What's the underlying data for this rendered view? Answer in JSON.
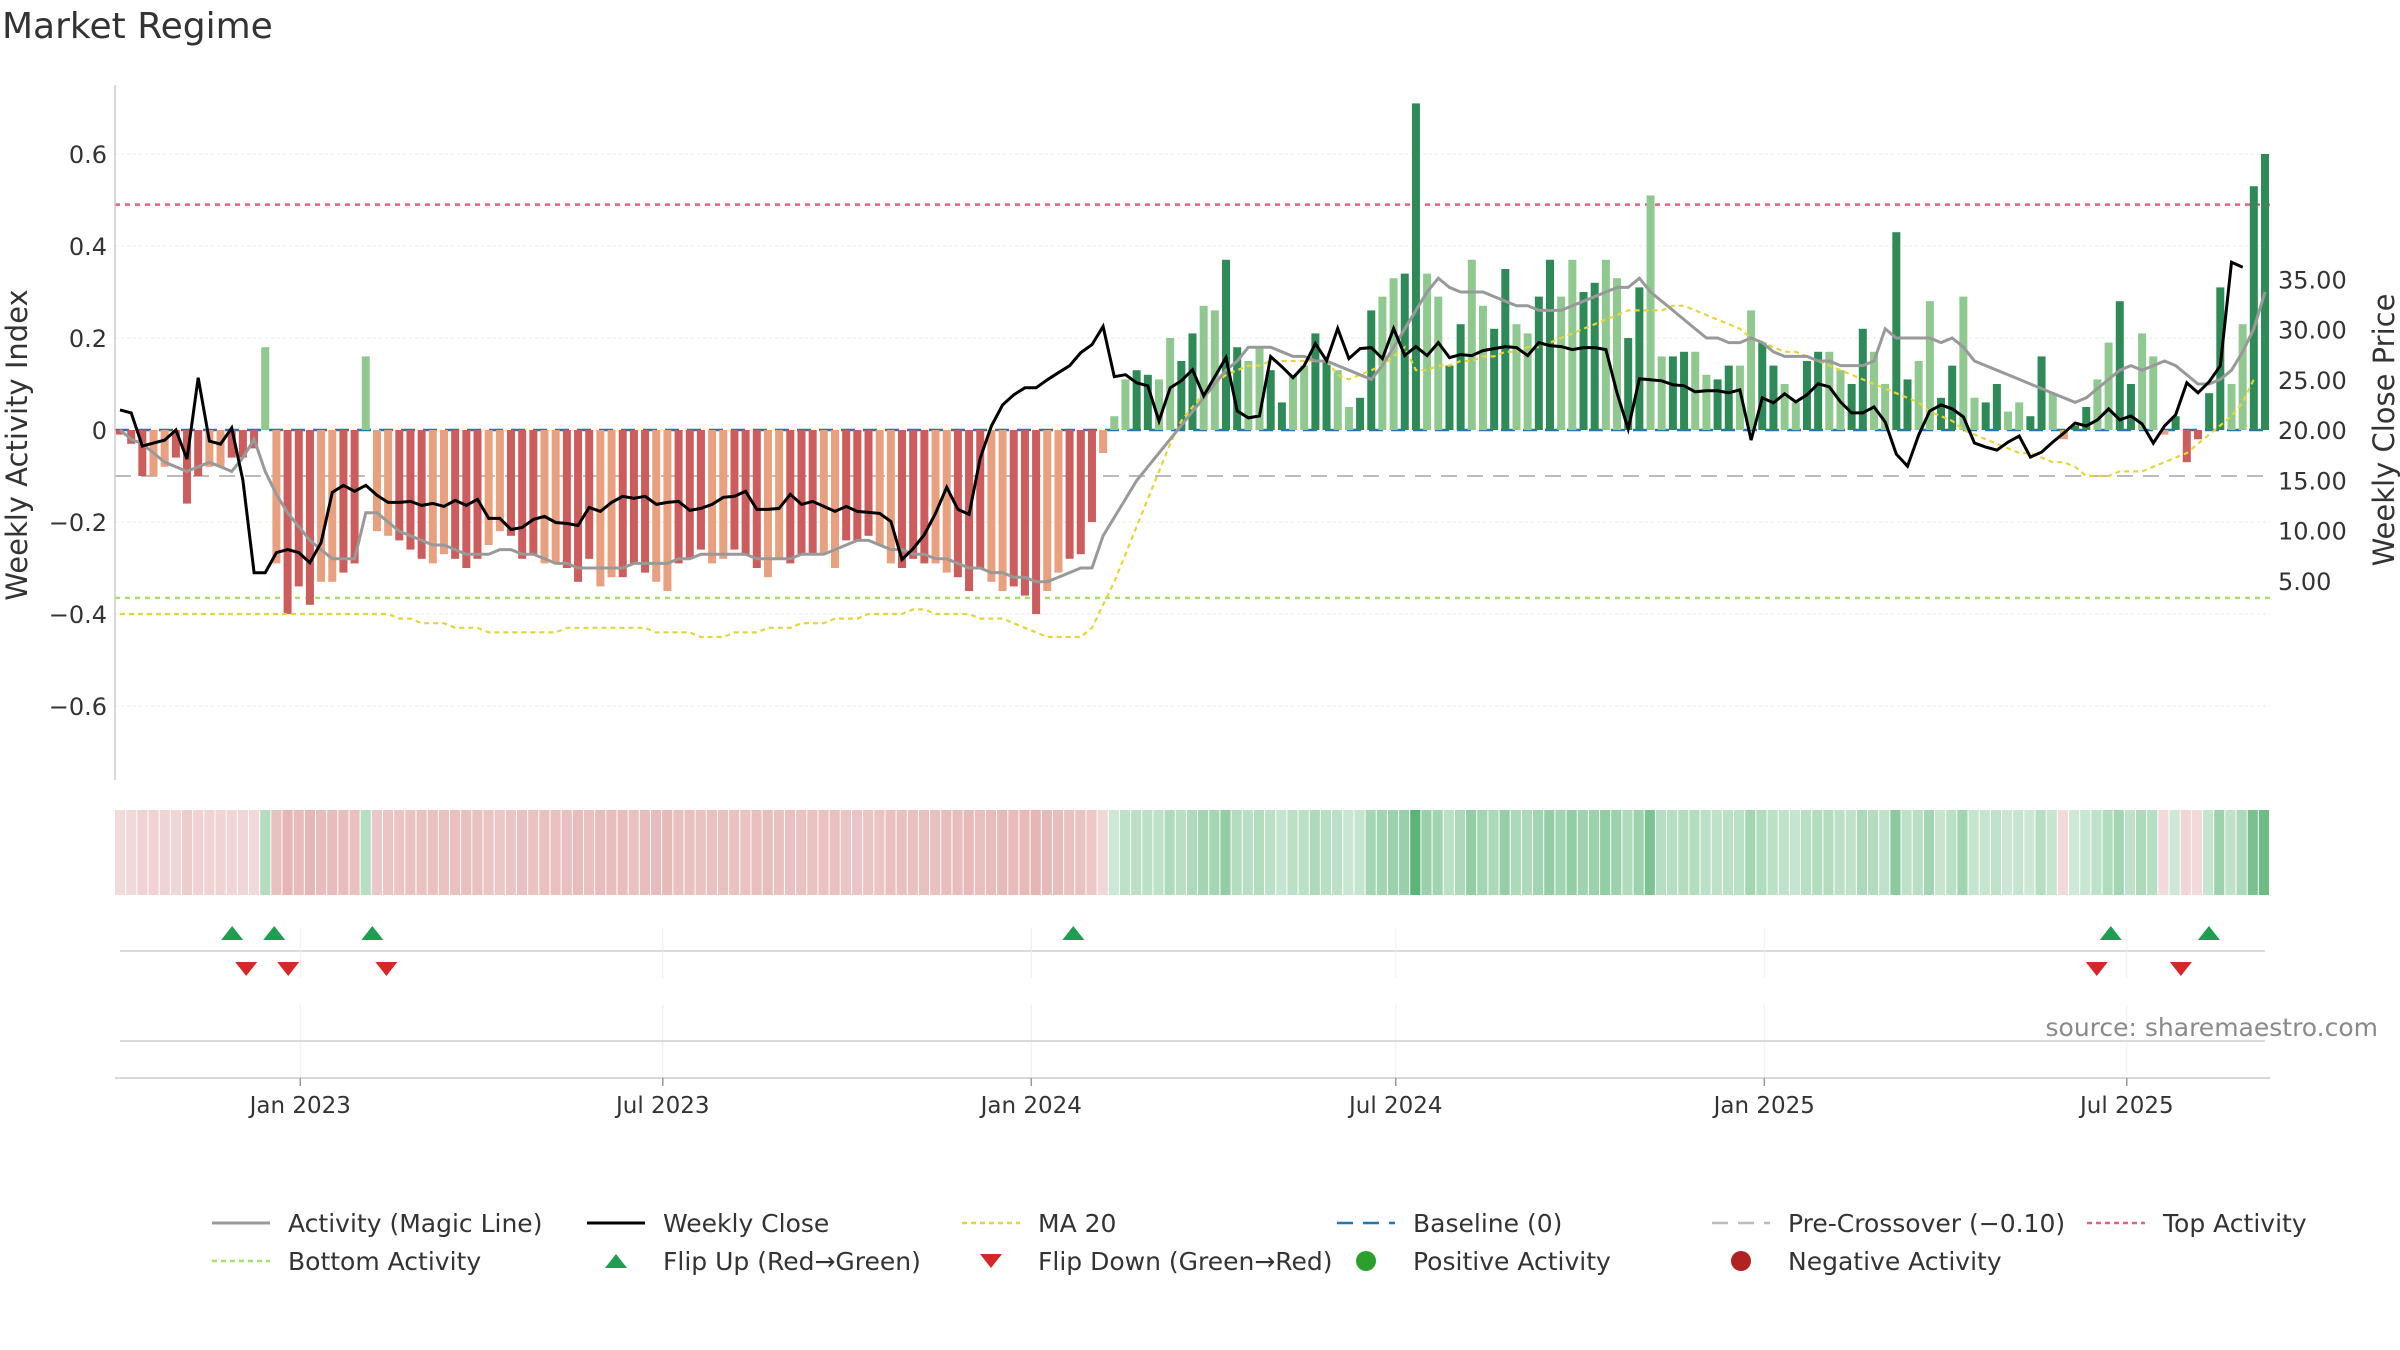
{
  "page": {
    "title": "Market Regime",
    "source": "source: sharemaestro.com"
  },
  "colors": {
    "pos_dark": "#2e8b57",
    "pos_light": "#8fc98f",
    "neg_dark": "#cd5c5c",
    "neg_light": "#e9a07e",
    "close": "#000000",
    "magic": "#999999",
    "ma20": "#e6d53a",
    "baseline": "#1f77b4",
    "precross": "#bbbbbb",
    "top": "#e8607a",
    "bottom": "#a6e06b",
    "flip_up": "#1e9e50",
    "flip_down": "#d62728",
    "pos_dot": "#2ca02c",
    "neg_dot": "#b22222"
  },
  "legend": [
    {
      "label": "Activity (Magic Line)",
      "key": "magic",
      "kind": "line"
    },
    {
      "label": "Weekly Close",
      "key": "close",
      "kind": "line"
    },
    {
      "label": "MA 20",
      "key": "ma20",
      "kind": "dotted"
    },
    {
      "label": "Baseline (0)",
      "key": "baseline",
      "kind": "dashed"
    },
    {
      "label": "Pre-Crossover (−0.10)",
      "key": "precross",
      "kind": "dashed"
    },
    {
      "label": "Top Activity",
      "key": "top",
      "kind": "dotted"
    },
    {
      "label": "Bottom Activity",
      "key": "bottom",
      "kind": "dotted"
    },
    {
      "label": "Flip Up (Red→Green)",
      "key": "flip_up",
      "kind": "tri-up"
    },
    {
      "label": "Flip Down (Green→Red)",
      "key": "flip_down",
      "kind": "tri-down"
    },
    {
      "label": "Positive Activity",
      "key": "pos_dot",
      "kind": "dot"
    },
    {
      "label": "Negative Activity",
      "key": "neg_dot",
      "kind": "dot"
    }
  ],
  "chart_data": {
    "type": "bar",
    "ylabel": "Weekly Activity Index",
    "y2label": "Weekly Close Price",
    "ylim": [
      -0.76,
      0.76
    ],
    "y2lim": [
      2.0,
      39.0
    ],
    "yticks": [
      0.6,
      0.4,
      0.2,
      0,
      -0.2,
      -0.4,
      -0.6
    ],
    "ytick_labels": [
      "0.6",
      "0.4",
      "0.2",
      "0",
      "−0.2",
      "−0.4",
      "−0.6"
    ],
    "y2ticks": [
      35,
      30,
      25,
      20,
      15,
      10,
      5
    ],
    "y2tick_labels": [
      "35.00",
      "30.00",
      "25.00",
      "20.00",
      "15.00",
      "10.00",
      "5.00"
    ],
    "x_start": "2022-10-03",
    "x_end": "2025-09-08",
    "xticks": [
      {
        "date": "2023-01-01",
        "label": "Jan 2023"
      },
      {
        "date": "2023-07-01",
        "label": "Jul 2023"
      },
      {
        "date": "2024-01-01",
        "label": "Jan 2024"
      },
      {
        "date": "2024-07-01",
        "label": "Jul 2024"
      },
      {
        "date": "2025-01-01",
        "label": "Jan 2025"
      },
      {
        "date": "2025-07-01",
        "label": "Jul 2025"
      }
    ],
    "reference_lines": {
      "top": 0.49,
      "bottom": -0.365,
      "baseline": 0,
      "pre_crossover": -0.1
    },
    "grid": true,
    "legend_position": "bottom",
    "activity": [
      -0.01,
      -0.03,
      -0.1,
      -0.1,
      -0.08,
      -0.06,
      -0.16,
      -0.1,
      -0.08,
      -0.08,
      -0.06,
      -0.06,
      -0.04,
      0.18,
      -0.29,
      -0.4,
      -0.34,
      -0.38,
      -0.33,
      -0.33,
      -0.31,
      -0.29,
      0.16,
      -0.22,
      -0.23,
      -0.24,
      -0.26,
      -0.28,
      -0.29,
      -0.27,
      -0.28,
      -0.3,
      -0.28,
      -0.25,
      -0.22,
      -0.23,
      -0.28,
      -0.27,
      -0.29,
      -0.29,
      -0.3,
      -0.33,
      -0.28,
      -0.34,
      -0.32,
      -0.32,
      -0.29,
      -0.31,
      -0.33,
      -0.35,
      -0.29,
      -0.28,
      -0.26,
      -0.29,
      -0.28,
      -0.26,
      -0.27,
      -0.3,
      -0.32,
      -0.28,
      -0.29,
      -0.27,
      -0.27,
      -0.27,
      -0.3,
      -0.24,
      -0.24,
      -0.23,
      -0.25,
      -0.29,
      -0.3,
      -0.28,
      -0.29,
      -0.29,
      -0.31,
      -0.32,
      -0.35,
      -0.3,
      -0.33,
      -0.35,
      -0.34,
      -0.36,
      -0.4,
      -0.35,
      -0.31,
      -0.28,
      -0.27,
      -0.2,
      -0.05,
      0.03,
      0.11,
      0.13,
      0.12,
      0.11,
      0.2,
      0.15,
      0.21,
      0.27,
      0.26,
      0.37,
      0.18,
      0.15,
      0.18,
      0.13,
      0.06,
      0.12,
      0.14,
      0.21,
      0.15,
      0.13,
      0.05,
      0.07,
      0.26,
      0.29,
      0.33,
      0.34,
      0.71,
      0.34,
      0.29,
      0.14,
      0.23,
      0.37,
      0.27,
      0.22,
      0.35,
      0.23,
      0.21,
      0.29,
      0.37,
      0.29,
      0.37,
      0.3,
      0.32,
      0.37,
      0.33,
      0.2,
      0.31,
      0.51,
      0.16,
      0.16,
      0.17,
      0.17,
      0.12,
      0.11,
      0.14,
      0.14,
      0.26,
      0.19,
      0.14,
      0.1,
      0.06,
      0.15,
      0.17,
      0.17,
      0.13,
      0.1,
      0.22,
      0.17,
      0.1,
      0.43,
      0.11,
      0.15,
      0.28,
      0.07,
      0.14,
      0.29,
      0.07,
      0.06,
      0.1,
      0.04,
      0.06,
      0.03,
      0.16,
      0.08,
      -0.02,
      0.01,
      0.05,
      0.11,
      0.19,
      0.28,
      0.1,
      0.21,
      0.16,
      -0.01,
      0.03,
      -0.07,
      -0.02,
      0.08,
      0.31,
      0.1,
      0.23,
      0.53,
      0.6
    ],
    "close": [
      22.0,
      21.7,
      18.4,
      18.7,
      19.0,
      20.0,
      17.1,
      25.2,
      18.9,
      18.6,
      20.2,
      15.0,
      5.8,
      5.8,
      7.8,
      8.1,
      7.8,
      6.8,
      8.8,
      13.8,
      14.5,
      13.9,
      14.5,
      13.5,
      12.8,
      12.8,
      12.9,
      12.5,
      12.7,
      12.4,
      13.0,
      12.5,
      13.1,
      11.2,
      11.2,
      10.1,
      10.3,
      11.1,
      11.4,
      10.8,
      10.7,
      10.5,
      12.3,
      11.9,
      12.8,
      13.4,
      13.2,
      13.4,
      12.6,
      12.8,
      12.9,
      12.0,
      12.2,
      12.6,
      13.3,
      13.4,
      13.9,
      12.1,
      12.1,
      12.2,
      13.6,
      12.6,
      12.9,
      12.4,
      11.9,
      12.4,
      11.9,
      11.8,
      11.7,
      10.9,
      7.1,
      8.2,
      9.6,
      11.7,
      14.3,
      12.1,
      11.6,
      17.2,
      20.4,
      22.5,
      23.5,
      24.2,
      24.2,
      25.0,
      25.7,
      26.4,
      27.7,
      28.5,
      30.3,
      25.3,
      25.5,
      24.7,
      24.4,
      20.9,
      24.2,
      24.9,
      26.0,
      23.4,
      25.3,
      27.2,
      21.9,
      21.2,
      21.4,
      27.3,
      26.3,
      25.2,
      26.4,
      28.6,
      26.9,
      30.1,
      27.1,
      28.1,
      28.2,
      27.1,
      30.1,
      27.4,
      28.3,
      27.4,
      28.7,
      27.2,
      27.5,
      27.4,
      27.9,
      28.1,
      28.3,
      28.2,
      27.4,
      28.7,
      28.4,
      28.3,
      28.0,
      28.2,
      28.2,
      28.0,
      23.7,
      20.1,
      25.1,
      25.0,
      24.9,
      24.5,
      24.4,
      23.8,
      23.9,
      23.9,
      23.7,
      24.0,
      19.0,
      23.2,
      22.7,
      23.6,
      22.8,
      23.5,
      24.6,
      24.3,
      22.8,
      21.7,
      21.7,
      22.3,
      20.8,
      17.6,
      16.4,
      19.5,
      21.9,
      22.5,
      22.1,
      21.3,
      18.7,
      18.3,
      18.0,
      18.8,
      19.4,
      17.3,
      17.8,
      18.8,
      19.7,
      20.7,
      20.4,
      21.0,
      22.1,
      21.0,
      21.4,
      20.6,
      18.7,
      20.4,
      21.5,
      24.7,
      23.7,
      24.8,
      26.4,
      36.7,
      36.2
    ],
    "magic": [
      0.0,
      -0.02,
      -0.03,
      -0.05,
      -0.07,
      -0.08,
      -0.09,
      -0.08,
      -0.07,
      -0.08,
      -0.09,
      -0.06,
      -0.02,
      -0.09,
      -0.14,
      -0.18,
      -0.21,
      -0.24,
      -0.26,
      -0.28,
      -0.28,
      -0.28,
      -0.18,
      -0.18,
      -0.2,
      -0.22,
      -0.23,
      -0.24,
      -0.25,
      -0.25,
      -0.26,
      -0.27,
      -0.27,
      -0.27,
      -0.26,
      -0.26,
      -0.27,
      -0.27,
      -0.28,
      -0.29,
      -0.29,
      -0.3,
      -0.3,
      -0.3,
      -0.3,
      -0.3,
      -0.29,
      -0.29,
      -0.29,
      -0.29,
      -0.28,
      -0.28,
      -0.27,
      -0.27,
      -0.27,
      -0.27,
      -0.27,
      -0.28,
      -0.28,
      -0.28,
      -0.28,
      -0.27,
      -0.27,
      -0.27,
      -0.26,
      -0.25,
      -0.24,
      -0.24,
      -0.25,
      -0.26,
      -0.26,
      -0.27,
      -0.27,
      -0.28,
      -0.28,
      -0.29,
      -0.3,
      -0.3,
      -0.31,
      -0.31,
      -0.32,
      -0.32,
      -0.33,
      -0.33,
      -0.32,
      -0.31,
      -0.3,
      -0.3,
      -0.23,
      -0.19,
      -0.15,
      -0.11,
      -0.08,
      -0.05,
      -0.02,
      0.01,
      0.04,
      0.07,
      0.1,
      0.13,
      0.15,
      0.18,
      0.18,
      0.18,
      0.17,
      0.16,
      0.16,
      0.15,
      0.15,
      0.14,
      0.13,
      0.12,
      0.11,
      0.14,
      0.18,
      0.22,
      0.26,
      0.3,
      0.33,
      0.31,
      0.3,
      0.3,
      0.3,
      0.29,
      0.28,
      0.27,
      0.27,
      0.26,
      0.26,
      0.26,
      0.27,
      0.28,
      0.29,
      0.3,
      0.31,
      0.31,
      0.33,
      0.3,
      0.28,
      0.26,
      0.24,
      0.22,
      0.2,
      0.2,
      0.19,
      0.19,
      0.2,
      0.19,
      0.17,
      0.16,
      0.16,
      0.16,
      0.15,
      0.15,
      0.14,
      0.14,
      0.14,
      0.15,
      0.22,
      0.2,
      0.2,
      0.2,
      0.2,
      0.19,
      0.2,
      0.18,
      0.15,
      0.14,
      0.13,
      0.12,
      0.11,
      0.1,
      0.09,
      0.08,
      0.07,
      0.06,
      0.07,
      0.09,
      0.11,
      0.13,
      0.14,
      0.13,
      0.14,
      0.15,
      0.14,
      0.12,
      0.1,
      0.1,
      0.11,
      0.13,
      0.17,
      0.22,
      0.3
    ],
    "ma20": [
      -0.4,
      -0.4,
      -0.4,
      -0.4,
      -0.4,
      -0.4,
      -0.4,
      -0.4,
      -0.4,
      -0.4,
      -0.4,
      -0.4,
      -0.4,
      -0.4,
      -0.4,
      -0.4,
      -0.4,
      -0.4,
      -0.4,
      -0.4,
      -0.4,
      -0.4,
      -0.4,
      -0.4,
      -0.4,
      -0.41,
      -0.41,
      -0.42,
      -0.42,
      -0.42,
      -0.43,
      -0.43,
      -0.43,
      -0.44,
      -0.44,
      -0.44,
      -0.44,
      -0.44,
      -0.44,
      -0.44,
      -0.43,
      -0.43,
      -0.43,
      -0.43,
      -0.43,
      -0.43,
      -0.43,
      -0.43,
      -0.44,
      -0.44,
      -0.44,
      -0.44,
      -0.45,
      -0.45,
      -0.45,
      -0.44,
      -0.44,
      -0.44,
      -0.43,
      -0.43,
      -0.43,
      -0.42,
      -0.42,
      -0.42,
      -0.41,
      -0.41,
      -0.41,
      -0.4,
      -0.4,
      -0.4,
      -0.4,
      -0.39,
      -0.39,
      -0.4,
      -0.4,
      -0.4,
      -0.4,
      -0.41,
      -0.41,
      -0.41,
      -0.42,
      -0.43,
      -0.44,
      -0.45,
      -0.45,
      -0.45,
      -0.45,
      -0.43,
      -0.38,
      -0.33,
      -0.27,
      -0.21,
      -0.15,
      -0.09,
      -0.03,
      0.02,
      0.05,
      0.08,
      0.1,
      0.12,
      0.13,
      0.14,
      0.14,
      0.15,
      0.15,
      0.15,
      0.15,
      0.15,
      0.15,
      0.12,
      0.11,
      0.12,
      0.13,
      0.14,
      0.16,
      0.18,
      0.13,
      0.13,
      0.14,
      0.14,
      0.15,
      0.15,
      0.16,
      0.16,
      0.17,
      0.17,
      0.18,
      0.18,
      0.19,
      0.2,
      0.21,
      0.22,
      0.23,
      0.24,
      0.25,
      0.26,
      0.26,
      0.26,
      0.26,
      0.27,
      0.27,
      0.26,
      0.25,
      0.24,
      0.23,
      0.22,
      0.2,
      0.19,
      0.18,
      0.17,
      0.17,
      0.16,
      0.15,
      0.14,
      0.13,
      0.12,
      0.11,
      0.1,
      0.09,
      0.08,
      0.07,
      0.06,
      0.04,
      0.03,
      0.02,
      0.0,
      -0.01,
      -0.02,
      -0.03,
      -0.04,
      -0.05,
      -0.05,
      -0.06,
      -0.07,
      -0.07,
      -0.08,
      -0.1,
      -0.1,
      -0.1,
      -0.09,
      -0.09,
      -0.09,
      -0.08,
      -0.07,
      -0.06,
      -0.05,
      -0.03,
      -0.01,
      0.01,
      0.03,
      0.06,
      0.11
    ],
    "flip_up": [
      "2022-11-28",
      "2022-12-19",
      "2023-02-06",
      "2024-01-22",
      "2025-06-23",
      "2025-08-11"
    ],
    "flip_down": [
      "2022-12-05",
      "2022-12-26",
      "2023-02-13",
      "2025-06-16",
      "2025-07-28"
    ]
  }
}
